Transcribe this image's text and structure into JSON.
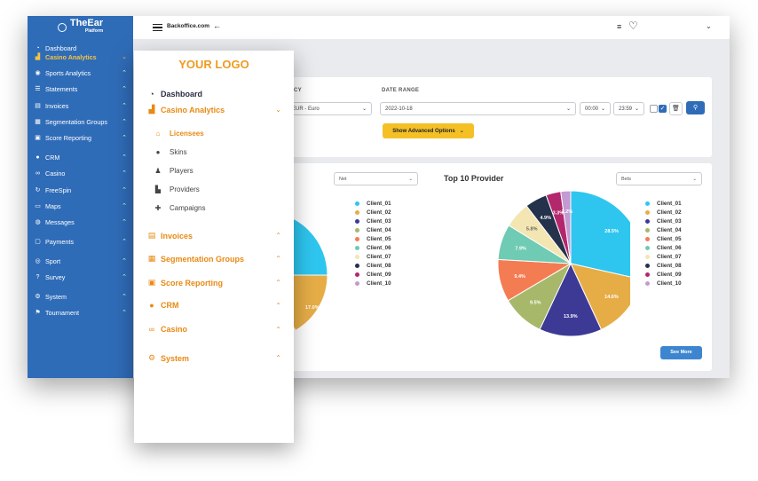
{
  "app": {
    "brand": {
      "name": "TheEar",
      "sub": "Platform"
    },
    "topbar": {
      "site": "Backoffice.com",
      "back_icon": "arrow-left-icon",
      "menu_icon": "menu-icon",
      "heart_icon": "heart-icon",
      "chevron": "⌄"
    },
    "sidebar": {
      "items": [
        {
          "label": "Dashboard",
          "icon": "dashboard-icon"
        },
        {
          "label": "Casino Analytics",
          "icon": "chart-icon"
        },
        {
          "label": "Sports Analytics",
          "icon": "sports-icon"
        },
        {
          "label": "Statements",
          "icon": "list-icon"
        },
        {
          "label": "Invoices",
          "icon": "invoice-icon"
        },
        {
          "label": "Segmentation Groups",
          "icon": "segment-icon"
        },
        {
          "label": "Score Reporting",
          "icon": "score-icon"
        },
        {
          "label": "CRM",
          "icon": "users-icon"
        },
        {
          "label": "Casino",
          "icon": "casino-icon"
        },
        {
          "label": "FreeSpin",
          "icon": "spin-icon"
        },
        {
          "label": "Maps",
          "icon": "map-icon"
        },
        {
          "label": "Messages",
          "icon": "message-icon"
        },
        {
          "label": "Payments",
          "icon": "payment-icon"
        },
        {
          "label": "Sport",
          "icon": "sport-icon"
        },
        {
          "label": "Survey",
          "icon": "survey-icon"
        },
        {
          "label": "System",
          "icon": "system-icon"
        },
        {
          "label": "Tournament",
          "icon": "flag-icon"
        }
      ]
    },
    "filter": {
      "currency_label": "CY",
      "currency_value": "EUR - Euro",
      "date_range_label": "DATE RANGE",
      "date_value": "2022-10-18",
      "time_from": "00:00",
      "time_to": "23:59",
      "advanced_label": "Show Advanced Options"
    },
    "left_card": {
      "select_value": "Net",
      "pie_labels": [
        "17.0%"
      ]
    },
    "right_card": {
      "title": "Top 10 Provider",
      "select_value": "Bets",
      "see_more": "See More"
    }
  },
  "chart_data": [
    {
      "type": "pie",
      "title": "Top 10 Provider",
      "categories": [
        "Client_01",
        "Client_02",
        "Client_03",
        "Client_04",
        "Client_05",
        "Client_06",
        "Client_07",
        "Client_08",
        "Client_09",
        "Client_10"
      ],
      "values": [
        28.5,
        14.6,
        13.9,
        9.5,
        9.4,
        7.9,
        5.8,
        4.9,
        3.3,
        2.2
      ],
      "labels": [
        "28.5%",
        "14.6%",
        "13.9%",
        "9.5%",
        "9.4%",
        "7.9%",
        "5.8%",
        "4.9%",
        "3.3%",
        "2.2%"
      ],
      "colors": [
        "#2ec6ef",
        "#e6ad47",
        "#3d3a96",
        "#a7b86a",
        "#f47c52",
        "#6fcbb3",
        "#f3e6b2",
        "#24324b",
        "#b3276d",
        "#c39ad2"
      ]
    },
    {
      "type": "pie",
      "categories": [
        "Client_01",
        "Client_02",
        "Client_03",
        "Client_04",
        "Client_05",
        "Client_06",
        "Client_07",
        "Client_08",
        "Client_09",
        "Client_10"
      ],
      "colors": [
        "#2ec6ef",
        "#e6ad47",
        "#3d3a96",
        "#a7b86a",
        "#f47c52",
        "#6fcbb3",
        "#f3e6b2",
        "#24324b",
        "#b3276d",
        "#c39ad2"
      ]
    }
  ],
  "front": {
    "logo": "YOUR LOGO",
    "dashboard": "Dashboard",
    "casino_analytics": "Casino Analytics",
    "subitems": [
      {
        "label": "Licensees",
        "icon": "bank-icon"
      },
      {
        "label": "Skins",
        "icon": "globe-icon"
      },
      {
        "label": "Players",
        "icon": "users-icon"
      },
      {
        "label": "Providers",
        "icon": "factory-icon"
      },
      {
        "label": "Campaigns",
        "icon": "gift-icon"
      }
    ],
    "groups": [
      {
        "label": "Invoices",
        "icon": "invoice-icon"
      },
      {
        "label": "Segmentation Groups",
        "icon": "segment-icon"
      },
      {
        "label": "Score Reporting",
        "icon": "score-icon"
      },
      {
        "label": "CRM",
        "icon": "users-icon"
      },
      {
        "label": "Casino",
        "icon": "casino-icon"
      },
      {
        "label": "System",
        "icon": "system-icon"
      }
    ]
  }
}
